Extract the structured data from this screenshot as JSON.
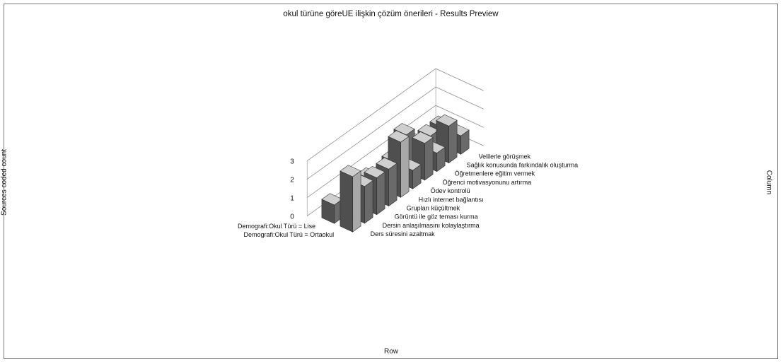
{
  "title": "okul türüne göreUE ilişkin çözüm önerileri - Results Preview",
  "chart_data": {
    "type": "bar",
    "variant": "3d-column",
    "title": "okul türüne göreUE ilişkin çözüm önerileri - Results Preview",
    "ylabel": "Sources coded count",
    "xlabel": "Row",
    "zlabel": "Column",
    "ylim": [
      0,
      3
    ],
    "yticks": [
      0,
      1,
      2,
      3
    ],
    "grid": true,
    "rows": [
      "Demografi:Okul Türü = Lise",
      "Demografi:Okul Türü = Ortaokul"
    ],
    "categories": [
      "Ders süresini azaltmak",
      "Dersin anlaşılmasını kolaylaştırma",
      "Görüntü ile göz teması kurma",
      "Grupları küçültmek",
      "Hızlı internet bağlantısı",
      "Ödev kontrolü",
      "Öğrenci motivasyonunu artırma",
      "Öğretmenlere eğitim vermek",
      "Sağlık konusunda farkındalık oluşturma",
      "Velilerle görüşmek"
    ],
    "series": [
      {
        "name": "Demografi:Okul Türü = Lise",
        "values": [
          1,
          0,
          1,
          1,
          0,
          1,
          2,
          1,
          1,
          1
        ]
      },
      {
        "name": "Demografi:Okul Türü = Ortaokul",
        "values": [
          3,
          2,
          2,
          2,
          3,
          1,
          2,
          1,
          2,
          1
        ]
      }
    ],
    "colors": {
      "bar": "#6a6a6a",
      "bar_light": "#a8a8a8",
      "bar_dark": "#2a2a2a",
      "grid": "#8c8c8c"
    }
  }
}
